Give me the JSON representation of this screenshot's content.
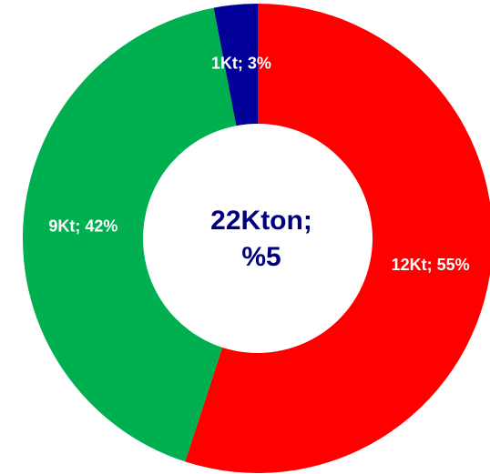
{
  "chart_data": {
    "type": "donut",
    "values": [
      55,
      42,
      3
    ],
    "value_labels": [
      "12Kt; 55%",
      "9Kt; 42%",
      "1Kt; 3%"
    ],
    "colors": [
      "#ff0000",
      "#00b050",
      "#000099"
    ],
    "center_label": [
      "22Kton;",
      "%5"
    ],
    "center_color": "#00007f"
  }
}
